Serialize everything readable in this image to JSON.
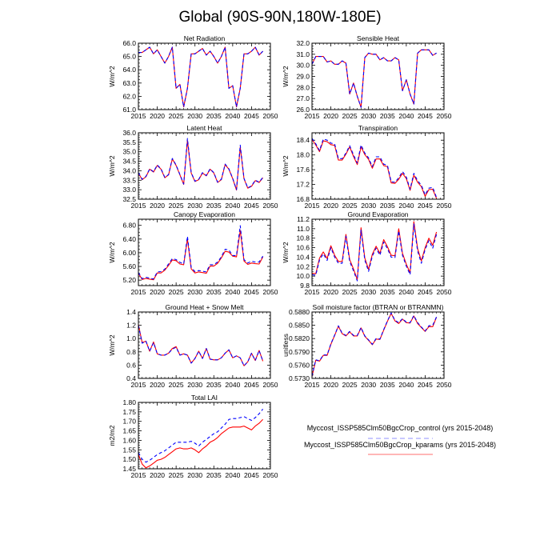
{
  "title": "Global (90S-90N,180W-180E)",
  "years": [
    2015,
    2016,
    2017,
    2018,
    2019,
    2020,
    2021,
    2022,
    2023,
    2024,
    2025,
    2026,
    2027,
    2028,
    2029,
    2030,
    2031,
    2032,
    2033,
    2034,
    2035,
    2036,
    2037,
    2038,
    2039,
    2040,
    2041,
    2042,
    2043,
    2044,
    2045,
    2046,
    2047,
    2048
  ],
  "legend": {
    "entries": [
      {
        "label": "Myccost_ISSP585Clm50BgcCrop_control (yrs 2015-2048)",
        "color": "#0000ff",
        "style": "dashed"
      },
      {
        "label": "Myccost_ISSP585Clm50BgcCrop_kparams (yrs 2015-2048)",
        "color": "#ff0000",
        "style": "solid"
      }
    ]
  },
  "chart_data": [
    {
      "type": "line",
      "title": "Net Radiation",
      "ylabel": "W/m^2",
      "xlim": [
        2015,
        2050
      ],
      "ylim": [
        61.0,
        66.0
      ],
      "xticks": [
        "2015",
        "2020",
        "2025",
        "2030",
        "2035",
        "2040",
        "2045",
        "2050"
      ],
      "yticks": [
        "61.0",
        "62.0",
        "63.0",
        "64.0",
        "65.0",
        "66.0"
      ],
      "series": [
        {
          "name": "control",
          "values": [
            65.3,
            65.3,
            65.5,
            65.7,
            65.2,
            65.5,
            65.0,
            64.5,
            65.0,
            65.7,
            62.6,
            62.9,
            61.2,
            62.6,
            65.2,
            65.2,
            65.4,
            65.6,
            65.1,
            65.4,
            65.0,
            64.5,
            65.0,
            65.7,
            62.6,
            62.8,
            61.2,
            62.6,
            65.2,
            65.2,
            65.4,
            65.7,
            65.1,
            65.4
          ]
        },
        {
          "name": "kparams",
          "values": [
            65.3,
            65.3,
            65.5,
            65.7,
            65.2,
            65.5,
            65.0,
            64.5,
            65.0,
            65.7,
            62.6,
            62.9,
            61.2,
            62.6,
            65.2,
            65.2,
            65.4,
            65.6,
            65.1,
            65.4,
            65.0,
            64.5,
            65.0,
            65.7,
            62.6,
            62.8,
            61.2,
            62.6,
            65.2,
            65.2,
            65.4,
            65.7,
            65.1,
            65.4
          ]
        }
      ]
    },
    {
      "type": "line",
      "title": "Sensible Heat",
      "ylabel": "W/m^2",
      "xlim": [
        2015,
        2050
      ],
      "ylim": [
        26.0,
        32.0
      ],
      "xticks": [
        "2015",
        "2020",
        "2025",
        "2030",
        "2035",
        "2040",
        "2045",
        "2050"
      ],
      "yticks": [
        "26.0",
        "27.0",
        "28.0",
        "29.0",
        "30.0",
        "31.0",
        "32.0"
      ],
      "series": [
        {
          "name": "control",
          "values": [
            30.1,
            30.8,
            30.8,
            30.8,
            30.3,
            30.4,
            30.1,
            30.1,
            30.4,
            30.2,
            27.4,
            28.4,
            27.2,
            26.2,
            30.7,
            31.1,
            31.0,
            31.0,
            30.5,
            30.7,
            30.4,
            30.4,
            30.7,
            30.5,
            27.7,
            28.7,
            27.4,
            26.5,
            31.1,
            31.4,
            31.4,
            31.4,
            30.9,
            31.1
          ]
        },
        {
          "name": "kparams",
          "values": [
            30.1,
            30.8,
            30.8,
            30.8,
            30.3,
            30.4,
            30.1,
            30.1,
            30.4,
            30.2,
            27.4,
            28.4,
            27.2,
            26.2,
            30.7,
            31.1,
            31.0,
            31.0,
            30.5,
            30.7,
            30.4,
            30.4,
            30.7,
            30.5,
            27.7,
            28.7,
            27.4,
            26.5,
            31.1,
            31.4,
            31.4,
            31.4,
            30.9,
            31.1
          ]
        }
      ]
    },
    {
      "type": "line",
      "title": "Latent Heat",
      "ylabel": "W/m^2",
      "xlim": [
        2015,
        2050
      ],
      "ylim": [
        32.5,
        36.0
      ],
      "xticks": [
        "2015",
        "2020",
        "2025",
        "2030",
        "2035",
        "2040",
        "2045",
        "2050"
      ],
      "yticks": [
        "32.5",
        "33.0",
        "33.5",
        "34.0",
        "34.5",
        "35.0",
        "35.5",
        "36.0"
      ],
      "series": [
        {
          "name": "control",
          "values": [
            33.9,
            33.55,
            33.7,
            34.1,
            33.95,
            34.3,
            34.1,
            33.65,
            33.8,
            34.65,
            34.3,
            33.8,
            33.3,
            35.7,
            33.9,
            33.45,
            33.55,
            33.9,
            33.75,
            34.1,
            33.9,
            33.4,
            33.55,
            34.35,
            34.1,
            33.6,
            33.0,
            35.35,
            33.6,
            33.1,
            33.2,
            33.5,
            33.4,
            33.65
          ]
        },
        {
          "name": "kparams",
          "values": [
            33.88,
            33.53,
            33.68,
            34.08,
            33.93,
            34.28,
            34.08,
            33.63,
            33.78,
            34.62,
            34.28,
            33.78,
            33.28,
            35.6,
            33.88,
            33.43,
            33.53,
            33.88,
            33.73,
            34.08,
            33.88,
            33.38,
            33.53,
            34.32,
            34.08,
            33.58,
            32.98,
            35.25,
            33.58,
            33.08,
            33.18,
            33.48,
            33.38,
            33.63
          ]
        }
      ]
    },
    {
      "type": "line",
      "title": "Transpiration",
      "ylabel": "W/m^2",
      "xlim": [
        2015,
        2050
      ],
      "ylim": [
        16.8,
        18.6
      ],
      "xticks": [
        "2015",
        "2020",
        "2025",
        "2030",
        "2035",
        "2040",
        "2045",
        "2050"
      ],
      "yticks": [
        "16.8",
        "17.2",
        "17.6",
        "18.0",
        "18.4"
      ],
      "series": [
        {
          "name": "control",
          "values": [
            18.45,
            18.3,
            18.12,
            18.43,
            18.4,
            18.32,
            18.3,
            17.9,
            17.9,
            18.05,
            18.25,
            18.0,
            17.78,
            18.27,
            18.05,
            17.92,
            17.68,
            17.95,
            17.95,
            17.75,
            17.72,
            17.27,
            17.26,
            17.38,
            17.55,
            17.4,
            17.07,
            17.5,
            17.3,
            17.18,
            16.92,
            17.1,
            17.12,
            16.85
          ]
        },
        {
          "name": "kparams",
          "values": [
            18.42,
            18.27,
            18.09,
            18.38,
            18.36,
            18.28,
            18.26,
            17.86,
            17.86,
            18.02,
            18.22,
            17.96,
            17.74,
            18.22,
            18.01,
            17.88,
            17.64,
            17.89,
            17.89,
            17.71,
            17.68,
            17.24,
            17.23,
            17.34,
            17.5,
            17.36,
            17.04,
            17.45,
            17.26,
            17.14,
            16.88,
            17.06,
            17.07,
            16.82
          ]
        }
      ]
    },
    {
      "type": "line",
      "title": "Canopy Evaporation",
      "ylabel": "W/m^2",
      "xlim": [
        2015,
        2050
      ],
      "ylim": [
        5.04,
        6.98
      ],
      "xticks": [
        "2015",
        "2020",
        "2025",
        "2030",
        "2035",
        "2040",
        "2045",
        "2050"
      ],
      "yticks": [
        "5.20",
        "5.60",
        "6.00",
        "6.40",
        "6.80"
      ],
      "series": [
        {
          "name": "control",
          "values": [
            5.42,
            5.24,
            5.28,
            5.26,
            5.23,
            5.44,
            5.45,
            5.52,
            5.67,
            5.83,
            5.8,
            5.72,
            5.67,
            6.48,
            5.57,
            5.45,
            5.48,
            5.46,
            5.44,
            5.65,
            5.65,
            5.73,
            5.88,
            6.1,
            6.08,
            5.92,
            5.92,
            6.79,
            5.8,
            5.7,
            5.75,
            5.73,
            5.73,
            5.9
          ]
        },
        {
          "name": "kparams",
          "values": [
            5.4,
            5.22,
            5.25,
            5.23,
            5.21,
            5.41,
            5.41,
            5.49,
            5.63,
            5.79,
            5.77,
            5.67,
            5.65,
            6.4,
            5.53,
            5.41,
            5.44,
            5.42,
            5.4,
            5.61,
            5.61,
            5.69,
            5.85,
            6.04,
            6.02,
            5.9,
            5.88,
            6.65,
            5.76,
            5.66,
            5.7,
            5.68,
            5.67,
            5.88
          ]
        }
      ]
    },
    {
      "type": "line",
      "title": "Ground Evaporation",
      "ylabel": "W/m^2",
      "xlim": [
        2015,
        2050
      ],
      "ylim": [
        9.8,
        11.2
      ],
      "xticks": [
        "2015",
        "2020",
        "2025",
        "2030",
        "2035",
        "2040",
        "2045",
        "2050"
      ],
      "yticks": [
        "9.8",
        "10.0",
        "10.2",
        "10.4",
        "10.6",
        "10.8",
        "11.0",
        "11.2"
      ],
      "series": [
        {
          "name": "control",
          "values": [
            10.03,
            10.02,
            10.34,
            10.47,
            10.33,
            10.6,
            10.4,
            10.27,
            10.27,
            10.84,
            10.31,
            10.11,
            9.9,
            10.97,
            10.34,
            10.1,
            10.42,
            10.59,
            10.44,
            10.72,
            10.58,
            10.4,
            10.39,
            10.95,
            10.44,
            10.21,
            10.03,
            11.1,
            10.53,
            10.27,
            10.56,
            10.75,
            10.59,
            10.88
          ]
        },
        {
          "name": "kparams",
          "values": [
            10.06,
            10.05,
            10.38,
            10.51,
            10.37,
            10.64,
            10.44,
            10.31,
            10.31,
            10.88,
            10.35,
            10.15,
            9.93,
            11.02,
            10.38,
            10.14,
            10.46,
            10.63,
            10.48,
            10.77,
            10.62,
            10.44,
            10.43,
            11.0,
            10.48,
            10.25,
            10.07,
            11.15,
            10.58,
            10.32,
            10.6,
            10.8,
            10.65,
            10.93
          ]
        }
      ]
    },
    {
      "type": "line",
      "title": "Ground Heat + Snow Melt",
      "ylabel": "W/m^2",
      "xlim": [
        2015,
        2050
      ],
      "ylim": [
        0.4,
        1.4
      ],
      "xticks": [
        "2015",
        "2020",
        "2025",
        "2030",
        "2035",
        "2040",
        "2045",
        "2050"
      ],
      "yticks": [
        "0.4",
        "0.6",
        "0.8",
        "1.0",
        "1.2",
        "1.4"
      ],
      "series": [
        {
          "name": "control",
          "values": [
            1.2,
            0.93,
            0.96,
            0.81,
            0.94,
            0.77,
            0.75,
            0.75,
            0.78,
            0.84,
            0.87,
            0.75,
            0.77,
            0.75,
            0.63,
            0.7,
            0.81,
            0.7,
            0.85,
            0.69,
            0.68,
            0.68,
            0.71,
            0.78,
            0.83,
            0.71,
            0.74,
            0.71,
            0.59,
            0.65,
            0.78,
            0.67,
            0.82,
            0.66
          ]
        },
        {
          "name": "kparams",
          "values": [
            1.21,
            0.94,
            0.96,
            0.81,
            0.95,
            0.77,
            0.75,
            0.75,
            0.78,
            0.85,
            0.88,
            0.75,
            0.77,
            0.75,
            0.63,
            0.7,
            0.81,
            0.7,
            0.85,
            0.69,
            0.68,
            0.68,
            0.71,
            0.78,
            0.83,
            0.71,
            0.74,
            0.71,
            0.59,
            0.65,
            0.78,
            0.67,
            0.82,
            0.66
          ]
        }
      ]
    },
    {
      "type": "line",
      "title": "Soil moisture factor (BTRAN or BTRANMN)",
      "ylabel": "unitless",
      "xlim": [
        2015,
        2050
      ],
      "ylim": [
        0.573,
        0.588
      ],
      "xticks": [
        "2015",
        "2020",
        "2025",
        "2030",
        "2035",
        "2040",
        "2045",
        "2050"
      ],
      "yticks": [
        "0.5730",
        "0.5760",
        "0.5790",
        "0.5820",
        "0.5850",
        "0.5880"
      ],
      "series": [
        {
          "name": "control",
          "values": [
            0.5735,
            0.5772,
            0.577,
            0.5783,
            0.5783,
            0.5808,
            0.5828,
            0.5849,
            0.5832,
            0.5827,
            0.5836,
            0.5827,
            0.5827,
            0.5845,
            0.5826,
            0.5817,
            0.5807,
            0.582,
            0.5819,
            0.584,
            0.586,
            0.5878,
            0.5861,
            0.5856,
            0.5865,
            0.5857,
            0.5856,
            0.5872,
            0.5856,
            0.5846,
            0.5837,
            0.5849,
            0.585,
            0.5869
          ]
        },
        {
          "name": "kparams",
          "values": [
            0.5734,
            0.5771,
            0.5769,
            0.5782,
            0.5782,
            0.5807,
            0.5827,
            0.5848,
            0.5831,
            0.5826,
            0.5835,
            0.5826,
            0.5826,
            0.5844,
            0.5825,
            0.5816,
            0.5806,
            0.5819,
            0.5818,
            0.5839,
            0.5859,
            0.5877,
            0.586,
            0.5854,
            0.5864,
            0.5856,
            0.5855,
            0.5871,
            0.5854,
            0.5845,
            0.5836,
            0.5847,
            0.5847,
            0.5868
          ]
        }
      ]
    },
    {
      "type": "line",
      "title": "Total LAI",
      "ylabel": "m2/m2",
      "xlim": [
        2015,
        2050
      ],
      "ylim": [
        1.45,
        1.8
      ],
      "xticks": [
        "2015",
        "2020",
        "2025",
        "2030",
        "2035",
        "2040",
        "2045",
        "2050"
      ],
      "yticks": [
        "1.45",
        "1.50",
        "1.55",
        "1.60",
        "1.65",
        "1.70",
        "1.75",
        "1.80"
      ],
      "series": [
        {
          "name": "control",
          "values": [
            1.535,
            1.5,
            1.485,
            1.495,
            1.51,
            1.525,
            1.535,
            1.545,
            1.56,
            1.575,
            1.59,
            1.59,
            1.59,
            1.59,
            1.595,
            1.585,
            1.57,
            1.59,
            1.605,
            1.62,
            1.635,
            1.645,
            1.665,
            1.685,
            1.71,
            1.715,
            1.715,
            1.72,
            1.725,
            1.715,
            1.705,
            1.72,
            1.74,
            1.765
          ]
        },
        {
          "name": "kparams",
          "values": [
            1.525,
            1.475,
            1.455,
            1.465,
            1.48,
            1.495,
            1.5,
            1.51,
            1.525,
            1.54,
            1.555,
            1.56,
            1.555,
            1.555,
            1.56,
            1.55,
            1.535,
            1.555,
            1.57,
            1.59,
            1.6,
            1.615,
            1.635,
            1.65,
            1.665,
            1.67,
            1.67,
            1.67,
            1.675,
            1.665,
            1.655,
            1.675,
            1.69,
            1.71
          ]
        }
      ]
    }
  ]
}
